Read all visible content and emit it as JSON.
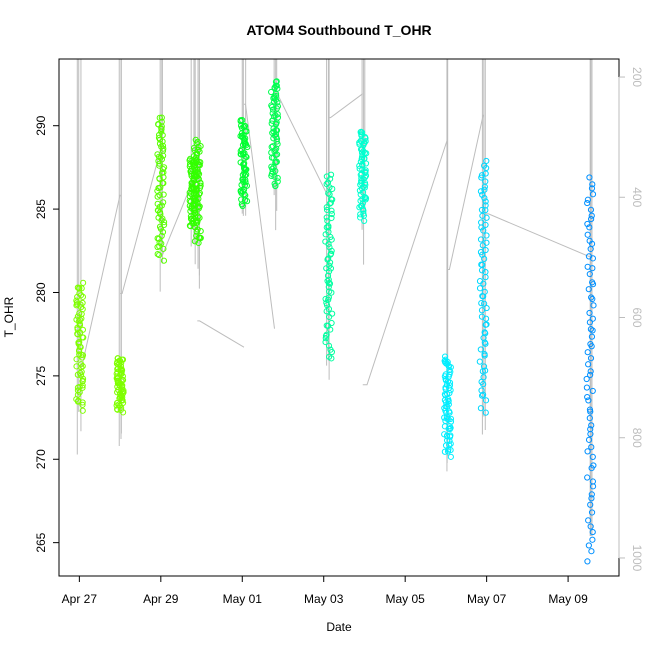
{
  "chart_data": {
    "type": "scatter",
    "title": "ATOM4 Southbound T_OHR",
    "xlabel": "Date",
    "ylabel": "T_OHR",
    "x_ticks": [
      "Apr 27",
      "Apr 29",
      "May 01",
      "May 03",
      "May 05",
      "May 07",
      "May 09"
    ],
    "y_ticks": [
      265,
      270,
      275,
      280,
      285,
      290
    ],
    "y2_ticks": [
      200,
      400,
      600,
      800,
      1000
    ],
    "xlim": [
      "2021-04-26T12:00",
      "2021-05-10T06:00"
    ],
    "ylim": [
      263,
      294
    ],
    "y2lim": [
      170,
      1030
    ],
    "y2_reversed": true,
    "grid": false,
    "marker": "open-circle",
    "colors": {
      "line": "#bdbdbd",
      "y2_axis": "#bdbdbd",
      "clusters": [
        "#7fff00",
        "#5aff00",
        "#33ff00",
        "#00ff30",
        "#00ff50",
        "#00ffa0",
        "#00ffd0",
        "#00eeff",
        "#00d8ff",
        "#0090ff"
      ]
    },
    "series": [
      {
        "name": "",
        "x": "2021-04-27T00:15",
        "y_min": 273.0,
        "y_max": 280.5,
        "color": "#7fff00"
      },
      {
        "name": "",
        "x": "2021-04-28T00:00",
        "y_min": 272.9,
        "y_max": 276.0,
        "color": "#7fff00"
      },
      {
        "name": "",
        "x": "2021-04-29T00:00",
        "y_min": 282.0,
        "y_max": 290.5,
        "color": "#5aff00"
      },
      {
        "name": "",
        "x": "2021-04-29T19:00",
        "y_min": 284.0,
        "y_max": 288.0,
        "color": "#33ff00"
      },
      {
        "name": "",
        "x": "2021-04-29T21:30",
        "y_min": 282.9,
        "y_max": 289.1,
        "color": "#33ff00"
      },
      {
        "name": "",
        "x": "2021-05-01T01:00",
        "y_min": 285.2,
        "y_max": 290.3,
        "color": "#00ff30"
      },
      {
        "name": "",
        "x": "2021-05-01T19:00",
        "y_min": 286.3,
        "y_max": 292.6,
        "color": "#00ff50"
      },
      {
        "name": "",
        "x": "2021-05-03T03:00",
        "y_min": 276.0,
        "y_max": 287.0,
        "color": "#00ffa0"
      },
      {
        "name": "",
        "x": "2021-05-03T23:00",
        "y_min": 284.4,
        "y_max": 289.7,
        "color": "#00ffd0"
      },
      {
        "name": "",
        "x": "2021-05-06T01:00",
        "y_min": 270.2,
        "y_max": 276.1,
        "color": "#00eeff"
      },
      {
        "name": "",
        "x": "2021-05-06T22:00",
        "y_min": 272.8,
        "y_max": 287.8,
        "color": "#00d8ff"
      },
      {
        "name": "",
        "x": "2021-05-09T13:00",
        "y_min": 263.9,
        "y_max": 286.8,
        "color": "#0090ff"
      }
    ]
  }
}
